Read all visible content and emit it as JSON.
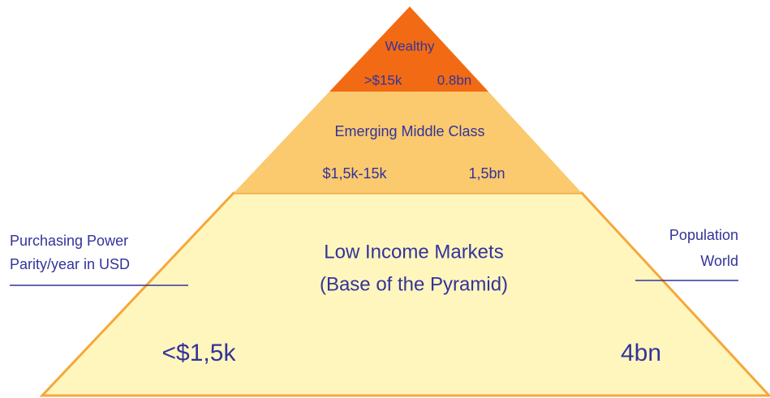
{
  "tiers": [
    {
      "title": "Wealthy",
      "income": ">$15k",
      "population": "0.8bn"
    },
    {
      "title": "Emerging Middle Class",
      "income": "$1,5k-15k",
      "population": "1,5bn"
    },
    {
      "title_lines": [
        "Low Income Markets",
        "(Base of the Pyramid)"
      ],
      "income": "<$1,5k",
      "population": "4bn"
    }
  ],
  "left_label": [
    "Purchasing Power",
    "Parity/year in USD"
  ],
  "right_label": [
    "Population",
    "World"
  ]
}
